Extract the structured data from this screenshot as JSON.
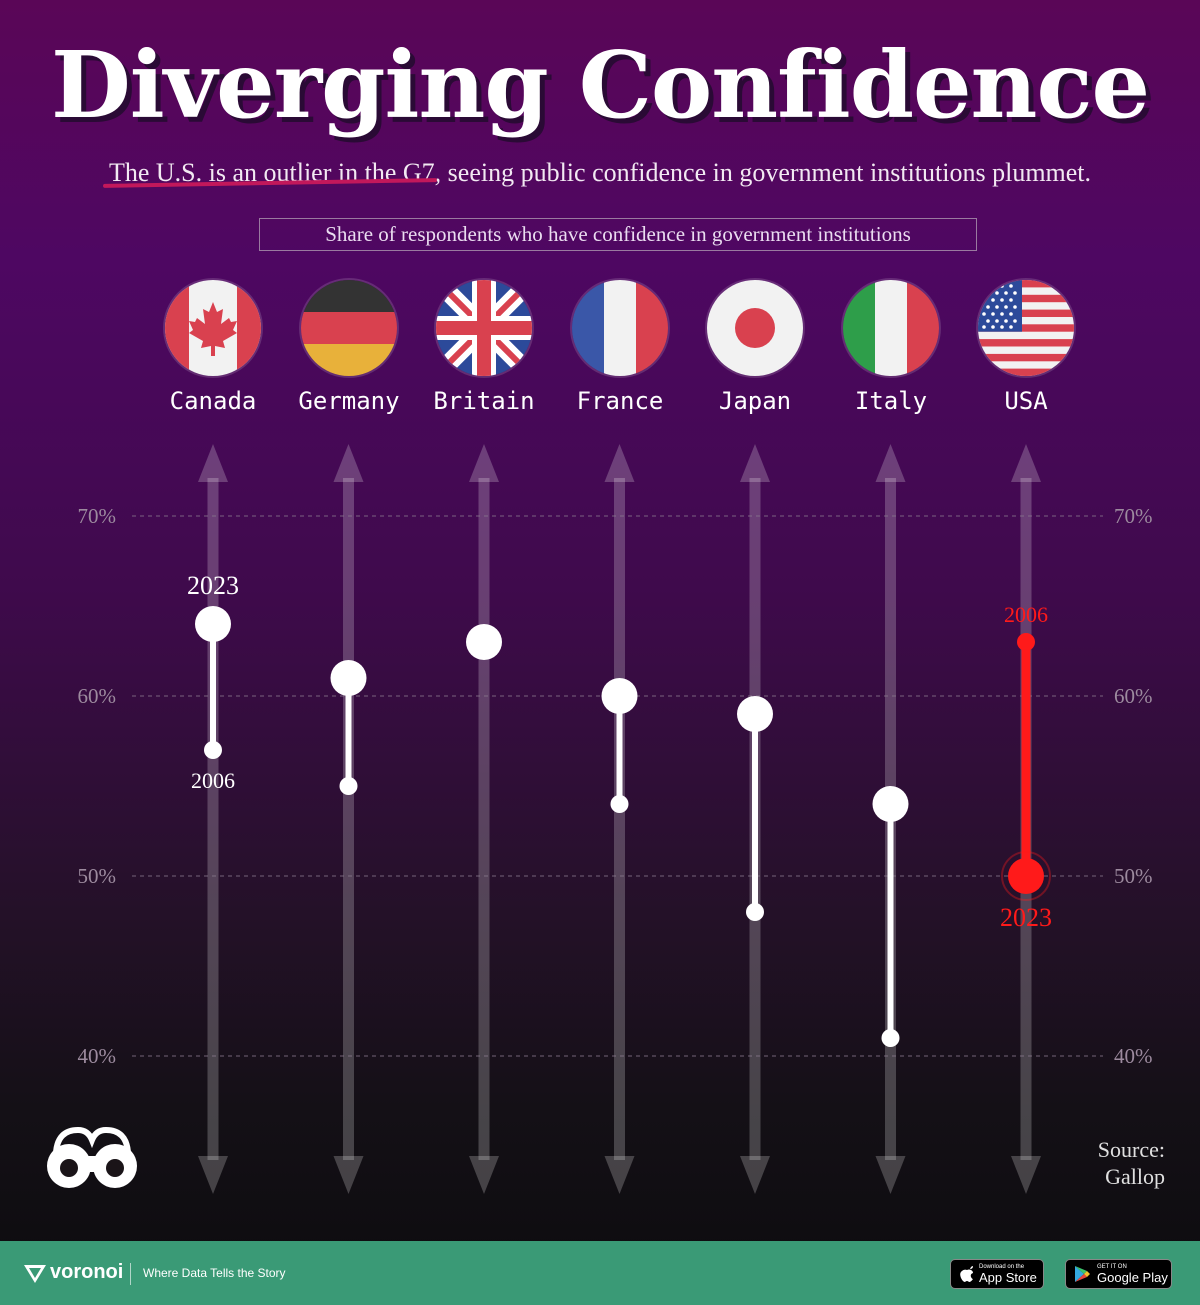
{
  "title": "Diverging Confidence",
  "subtitle": {
    "highlight": "The U.S. is an outlier in the G7",
    "rest": ", seeing public confidence in government institutions plummet."
  },
  "legend_box": "Share of respondents who have confidence in government institutions",
  "colors": {
    "accent_usa": "#ff1a1a",
    "dot_default": "#ffffff",
    "footer_bg": "#3a9a76",
    "grid": "#8a7a8e"
  },
  "chart_data": {
    "type": "dumbbell",
    "title": "Diverging Confidence",
    "ylabel": "Share of respondents who have confidence in government institutions",
    "ylim": [
      35,
      75
    ],
    "yticks": [
      40,
      50,
      60,
      70
    ],
    "ytick_labels": [
      "40%",
      "50%",
      "60%",
      "70%"
    ],
    "categories": [
      "Canada",
      "Germany",
      "Britain",
      "France",
      "Japan",
      "Italy",
      "USA"
    ],
    "series": [
      {
        "name": "2006",
        "values": [
          57,
          55,
          63,
          54,
          48,
          41,
          63
        ]
      },
      {
        "name": "2023",
        "values": [
          64,
          61,
          63,
          60,
          59,
          54,
          50
        ]
      }
    ],
    "annotations": [
      {
        "category": "Canada",
        "series": "2023",
        "text": "2023",
        "position": "above"
      },
      {
        "category": "Canada",
        "series": "2006",
        "text": "2006",
        "position": "below"
      },
      {
        "category": "USA",
        "series": "2006",
        "text": "2006",
        "position": "above"
      },
      {
        "category": "USA",
        "series": "2023",
        "text": "2023",
        "position": "below"
      }
    ],
    "highlight_category": "USA"
  },
  "source": {
    "label": "Source:",
    "value": "Gallop"
  },
  "footer": {
    "brand": "voronoi",
    "tagline": "Where Data Tells the Story",
    "app_store_small": "Download on the",
    "app_store_big": "App Store",
    "google_play_small": "GET IT ON",
    "google_play_big": "Google Play"
  }
}
